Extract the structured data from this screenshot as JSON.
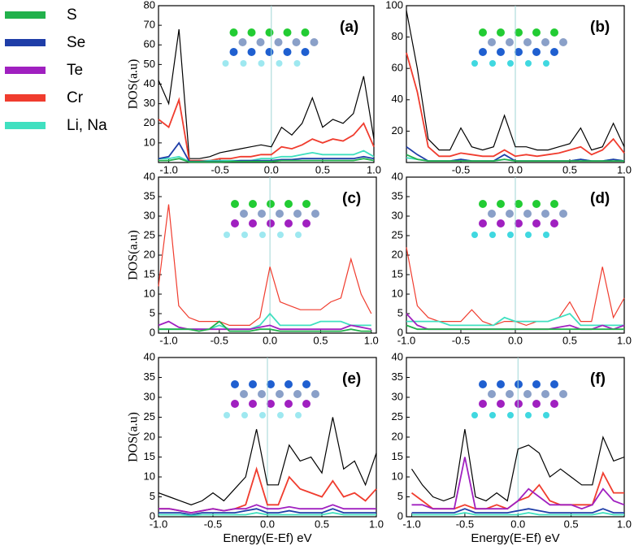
{
  "legend": [
    {
      "name": "S",
      "color": "#22b14c"
    },
    {
      "name": "Se",
      "color": "#1f3ea8"
    },
    {
      "name": "Te",
      "color": "#a020c0"
    },
    {
      "name": "Cr",
      "color": "#f03c2e"
    },
    {
      "name": "Li, Na",
      "color": "#40e0c0"
    }
  ],
  "chart_data": [
    {
      "type": "line",
      "label": "(a)",
      "ylabel": "DOS(a.u)",
      "xlim": [
        -1.1,
        1.0
      ],
      "xticks": [
        {
          "value": -1,
          "label": "-1.0"
        },
        -0.5,
        {
          "value": 0,
          "label": "0.0"
        },
        0.5,
        {
          "value": 1,
          "label": "1.0"
        }
      ],
      "ylim": [
        0,
        80
      ],
      "yticks": [
        10,
        20,
        30,
        40,
        50,
        60,
        70,
        80
      ],
      "x": [
        -1.1,
        -1.0,
        -0.9,
        -0.8,
        -0.7,
        -0.6,
        -0.5,
        -0.4,
        -0.3,
        -0.2,
        -0.1,
        0.0,
        0.1,
        0.2,
        0.3,
        0.4,
        0.5,
        0.6,
        0.7,
        0.8,
        0.9,
        1.0
      ],
      "series": [
        {
          "color": "#000000",
          "values": [
            42,
            30,
            68,
            2,
            2,
            3,
            5,
            6,
            7,
            8,
            9,
            8,
            18,
            14,
            20,
            33,
            18,
            22,
            20,
            25,
            44,
            12
          ]
        },
        {
          "color": "#f03c2e",
          "values": [
            22,
            18,
            32,
            1,
            1,
            1,
            2,
            2,
            3,
            3,
            4,
            4,
            8,
            7,
            9,
            12,
            10,
            12,
            11,
            14,
            20,
            8
          ]
        },
        {
          "color": "#40e0c0",
          "values": [
            2,
            2,
            3,
            0.5,
            0.5,
            1,
            1,
            1,
            1,
            1,
            2,
            2,
            3,
            3,
            4,
            5,
            4,
            4,
            4,
            4,
            6,
            3
          ]
        },
        {
          "color": "#1f3ea8",
          "values": [
            2,
            3,
            10,
            0.5,
            0.5,
            0.5,
            0.5,
            0.5,
            1,
            1,
            1,
            1,
            1.5,
            1.5,
            2,
            2,
            2,
            2,
            2,
            2,
            3,
            2
          ]
        },
        {
          "color": "#22b14c",
          "values": [
            1,
            1,
            2,
            0.3,
            0.3,
            0.3,
            0.3,
            0.5,
            0.5,
            0.5,
            0.5,
            0.5,
            1,
            1,
            1,
            1,
            1,
            1,
            1,
            1,
            2,
            1
          ]
        }
      ]
    },
    {
      "type": "line",
      "label": "(b)",
      "xlim": [
        -1.0,
        1.0
      ],
      "xticks": [
        -0.5,
        {
          "value": 0,
          "label": "0.0"
        },
        0.5,
        {
          "value": 1,
          "label": "1.0"
        }
      ],
      "ylim": [
        0,
        100
      ],
      "yticks": [
        20,
        40,
        60,
        80,
        100
      ],
      "x": [
        -1.0,
        -0.9,
        -0.8,
        -0.7,
        -0.6,
        -0.5,
        -0.4,
        -0.3,
        -0.2,
        -0.1,
        0.0,
        0.1,
        0.2,
        0.3,
        0.4,
        0.5,
        0.6,
        0.7,
        0.8,
        0.9,
        1.0
      ],
      "series": [
        {
          "color": "#000000",
          "values": [
            97,
            60,
            15,
            8,
            8,
            22,
            10,
            8,
            10,
            30,
            10,
            10,
            8,
            8,
            10,
            12,
            22,
            8,
            10,
            25,
            10
          ]
        },
        {
          "color": "#f03c2e",
          "values": [
            70,
            45,
            10,
            4,
            4,
            6,
            5,
            4,
            4,
            8,
            4,
            5,
            4,
            5,
            6,
            8,
            10,
            5,
            8,
            15,
            6
          ]
        },
        {
          "color": "#40e0c0",
          "values": [
            3,
            2,
            1,
            1,
            1,
            2,
            1,
            1,
            1,
            2,
            1,
            1,
            1,
            1,
            1,
            1,
            2,
            1,
            1,
            2,
            1
          ]
        },
        {
          "color": "#1f3ea8",
          "values": [
            10,
            5,
            1,
            1,
            1,
            2,
            1,
            1,
            1,
            5,
            1,
            1,
            1,
            1,
            1,
            1,
            2,
            1,
            1,
            2,
            1
          ]
        },
        {
          "color": "#22b14c",
          "values": [
            5,
            2,
            1,
            1,
            1,
            1,
            1,
            1,
            1,
            2,
            1,
            1,
            1,
            1,
            1,
            1,
            1,
            1,
            1,
            1,
            1
          ]
        }
      ]
    },
    {
      "type": "line",
      "label": "(c)",
      "ylabel": "DOS(a.u)",
      "xlim": [
        -1.1,
        1.05
      ],
      "xticks": [
        {
          "value": -1,
          "label": "-1.0"
        },
        -0.5,
        {
          "value": 0,
          "label": "0.0"
        },
        0.5,
        {
          "value": 1,
          "label": "1.0"
        }
      ],
      "ylim": [
        0,
        40
      ],
      "yticks": [
        0,
        5,
        10,
        15,
        20,
        25,
        30,
        35,
        40
      ],
      "x": [
        -1.1,
        -1.0,
        -0.9,
        -0.8,
        -0.7,
        -0.6,
        -0.5,
        -0.4,
        -0.3,
        -0.2,
        -0.1,
        0.0,
        0.1,
        0.2,
        0.3,
        0.4,
        0.5,
        0.6,
        0.7,
        0.8,
        0.9,
        1.0
      ],
      "series": [
        {
          "color": "#f03c2e",
          "values": [
            12,
            33,
            7,
            4,
            3,
            3,
            3,
            2,
            2,
            2,
            4,
            17,
            8,
            7,
            6,
            6,
            6,
            8,
            9,
            19,
            10,
            5
          ]
        },
        {
          "color": "#40e0c0",
          "values": [
            1,
            1,
            1,
            1,
            1,
            1,
            2,
            1,
            1,
            1,
            2,
            5,
            2,
            2,
            2,
            2,
            3,
            3,
            3,
            2,
            2,
            2
          ]
        },
        {
          "color": "#a020c0",
          "values": [
            2,
            3,
            1.5,
            1,
            1,
            1,
            1,
            1,
            1,
            1,
            1.5,
            2,
            1,
            1,
            1,
            1,
            1,
            1,
            1,
            2,
            1.5,
            1
          ]
        },
        {
          "color": "#22b14c",
          "values": [
            1,
            1,
            1,
            1,
            0.5,
            1,
            3,
            0.5,
            0.5,
            0.5,
            1,
            1,
            0.5,
            0.5,
            0.5,
            0.5,
            0.5,
            0.5,
            0.5,
            1,
            0.5,
            0.5
          ]
        }
      ]
    },
    {
      "type": "line",
      "label": "(d)",
      "xlim": [
        -1.0,
        1.0
      ],
      "xticks": [
        {
          "value": -1,
          "label": "-1.0"
        },
        -0.5,
        {
          "value": 0,
          "label": "0.0"
        },
        0.5,
        {
          "value": 1,
          "label": "1.0"
        }
      ],
      "ylim": [
        0,
        40
      ],
      "yticks": [
        0,
        5,
        10,
        15,
        20,
        25,
        30,
        35,
        40
      ],
      "x": [
        -1.0,
        -0.9,
        -0.8,
        -0.7,
        -0.6,
        -0.5,
        -0.4,
        -0.3,
        -0.2,
        -0.1,
        0.0,
        0.1,
        0.2,
        0.3,
        0.4,
        0.5,
        0.6,
        0.7,
        0.8,
        0.9,
        1.0
      ],
      "series": [
        {
          "color": "#f03c2e",
          "values": [
            22,
            7,
            4,
            3,
            3,
            3,
            6,
            3,
            2,
            3,
            3,
            2,
            3,
            3,
            4,
            8,
            3,
            3,
            17,
            4,
            9
          ]
        },
        {
          "color": "#40e0c0",
          "values": [
            3,
            3,
            3,
            3,
            2,
            2,
            2,
            2,
            2,
            4,
            3,
            3,
            3,
            3,
            4,
            5,
            2,
            2,
            2,
            2,
            2
          ]
        },
        {
          "color": "#a020c0",
          "values": [
            5,
            2,
            1,
            1,
            1,
            1,
            1,
            1,
            1,
            1,
            1,
            1,
            1,
            1,
            1.5,
            2,
            1,
            1,
            2,
            1,
            2
          ]
        },
        {
          "color": "#22b14c",
          "values": [
            2,
            1,
            1,
            1,
            1,
            1,
            1,
            1,
            1,
            1,
            1,
            1,
            1,
            1,
            1,
            1,
            1,
            1,
            1,
            1,
            1
          ]
        }
      ]
    },
    {
      "type": "line",
      "label": "(e)",
      "ylabel": "DOS(a.u)",
      "xlabel": "Energy(E-Ef) eV",
      "xlim": [
        -1.0,
        1.0
      ],
      "xticks": [
        {
          "value": -1,
          "label": "-1.0"
        },
        -0.5,
        {
          "value": 0,
          "label": "0.0"
        },
        0.5,
        {
          "value": 1,
          "label": "1.0"
        }
      ],
      "ylim": [
        0,
        40
      ],
      "yticks": [
        0,
        5,
        10,
        15,
        20,
        25,
        30,
        35,
        40
      ],
      "x": [
        -1.0,
        -0.9,
        -0.8,
        -0.7,
        -0.6,
        -0.5,
        -0.4,
        -0.3,
        -0.2,
        -0.1,
        0.0,
        0.1,
        0.2,
        0.3,
        0.4,
        0.5,
        0.6,
        0.7,
        0.8,
        0.9,
        1.0
      ],
      "series": [
        {
          "color": "#000000",
          "values": [
            6,
            5,
            4,
            3,
            4,
            6,
            4,
            7,
            10,
            22,
            8,
            8,
            18,
            14,
            15,
            11,
            25,
            12,
            14,
            8,
            16
          ]
        },
        {
          "color": "#f03c2e",
          "values": [
            2,
            2,
            1.5,
            1,
            1.5,
            2,
            1.5,
            2,
            3,
            12,
            3,
            3,
            10,
            7,
            6,
            5,
            9,
            5,
            6,
            4,
            7
          ]
        },
        {
          "color": "#a020c0",
          "values": [
            2,
            2,
            1.5,
            1,
            1.5,
            2,
            1.5,
            2,
            2,
            3,
            2,
            2,
            2.5,
            2,
            2,
            2,
            3,
            2,
            2,
            2,
            2
          ]
        },
        {
          "color": "#1f3ea8",
          "values": [
            1,
            1,
            1,
            0.5,
            1,
            1,
            1,
            1,
            1.5,
            2,
            1,
            1,
            1.5,
            1,
            1,
            1,
            2,
            1,
            1,
            1,
            1
          ]
        },
        {
          "color": "#40e0c0",
          "values": [
            0.5,
            0.5,
            0.5,
            0.3,
            0.5,
            0.5,
            0.5,
            0.5,
            0.5,
            1,
            0.5,
            0.5,
            0.5,
            0.5,
            0.5,
            0.5,
            1,
            0.5,
            0.5,
            0.5,
            0.5
          ]
        }
      ]
    },
    {
      "type": "line",
      "label": "(f)",
      "xlabel": "Energy(E-Ef) eV",
      "xlim": [
        -1.05,
        1.0
      ],
      "xticks": [
        {
          "value": -1,
          "label": "-1.0"
        },
        -0.5,
        {
          "value": 0,
          "label": "0.0"
        },
        0.5,
        {
          "value": 1,
          "label": "1.0"
        }
      ],
      "ylim": [
        0,
        40
      ],
      "yticks": [
        0,
        5,
        10,
        15,
        20,
        25,
        30,
        35,
        40
      ],
      "x": [
        -1.0,
        -0.9,
        -0.8,
        -0.7,
        -0.6,
        -0.5,
        -0.4,
        -0.3,
        -0.2,
        -0.1,
        0.0,
        0.1,
        0.2,
        0.3,
        0.4,
        0.5,
        0.6,
        0.7,
        0.8,
        0.9,
        1.0
      ],
      "series": [
        {
          "color": "#000000",
          "values": [
            12,
            8,
            5,
            4,
            5,
            22,
            5,
            4,
            6,
            4,
            17,
            18,
            16,
            10,
            12,
            10,
            8,
            8,
            20,
            14,
            15
          ]
        },
        {
          "color": "#f03c2e",
          "values": [
            6,
            4,
            2,
            2,
            2,
            3,
            2,
            2,
            3,
            2,
            4,
            5,
            8,
            4,
            3,
            3,
            3,
            3,
            11,
            6,
            6
          ]
        },
        {
          "color": "#a020c0",
          "values": [
            3,
            3,
            2,
            2,
            2,
            15,
            2,
            2,
            2,
            2,
            4,
            7,
            5,
            3,
            3,
            3,
            2,
            3,
            7,
            4,
            3
          ]
        },
        {
          "color": "#1f3ea8",
          "values": [
            1,
            1,
            1,
            1,
            1,
            2,
            1,
            1,
            1,
            1,
            1.5,
            2,
            1.5,
            1,
            1,
            1,
            1,
            1,
            2,
            1,
            1
          ]
        },
        {
          "color": "#40e0c0",
          "values": [
            0.5,
            0.5,
            0.5,
            0.5,
            0.5,
            1,
            0.5,
            0.5,
            0.5,
            0.5,
            0.5,
            1,
            0.5,
            0.5,
            0.5,
            0.5,
            0.5,
            0.5,
            1,
            0.5,
            0.5
          ]
        }
      ]
    }
  ]
}
